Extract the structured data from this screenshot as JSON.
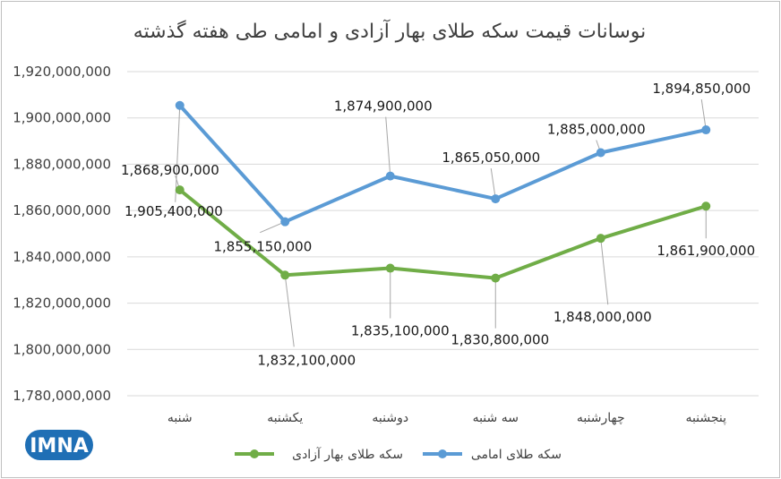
{
  "chart_data": {
    "type": "line",
    "title": "نوسانات قیمت سکه طلای بهار آزادی و امامی طی هفته گذشته",
    "categories": [
      "شنبه",
      "یکشنبه",
      "دوشنبه",
      "سه شنبه",
      "چهارشنبه",
      "پنجشنبه"
    ],
    "ylim": [
      1780000000,
      1920000000
    ],
    "ytick_step": 20000000,
    "yticks": [
      "1,780,000,000",
      "1,800,000,000",
      "1,820,000,000",
      "1,840,000,000",
      "1,860,000,000",
      "1,880,000,000",
      "1,900,000,000",
      "1,920,000,000"
    ],
    "grid": true,
    "legend_position": "bottom",
    "series": [
      {
        "name": "سکه طلای امامی",
        "color": "#5b9bd5",
        "values": [
          1905400000,
          1855150000,
          1874900000,
          1865050000,
          1885000000,
          1894850000
        ],
        "labels": [
          "1,905,400,000",
          "1,855,150,000",
          "1,874,900,000",
          "1,865,050,000",
          "1,885,000,000",
          "1,894,850,000"
        ]
      },
      {
        "name": "سکه طلای بهار آزادی",
        "color": "#70ad47",
        "values": [
          1868900000,
          1832100000,
          1835100000,
          1830800000,
          1848000000,
          1861900000
        ],
        "labels": [
          "1,868,900,000",
          "1,832,100,000",
          "1,835,100,000",
          "1,830,800,000",
          "1,848,000,000",
          "1,861,900,000"
        ]
      }
    ]
  },
  "logo": {
    "text": "IMNA",
    "icon": "imna-logo-icon",
    "color": "#1f6fb5"
  }
}
